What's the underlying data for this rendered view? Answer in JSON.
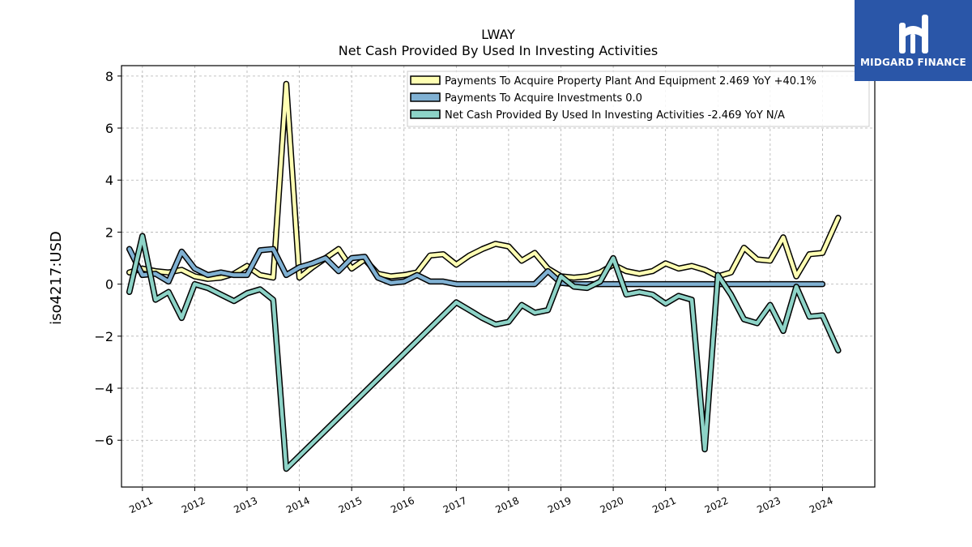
{
  "logo": {
    "text": "MIDGARD FINANCE",
    "icon": "midgard-mark-icon",
    "background": "#2a56a8"
  },
  "chart_data": {
    "type": "line",
    "title": "LWAY",
    "subtitle": "Net Cash Provided By Used In Investing Activities",
    "xlabel": "",
    "ylabel": "iso4217:USD",
    "xlim": [
      2010.6,
      2025.0
    ],
    "ylim": [
      -7.8,
      8.4
    ],
    "x_ticks": [
      2011,
      2012,
      2013,
      2014,
      2015,
      2016,
      2017,
      2018,
      2019,
      2020,
      2021,
      2022,
      2023,
      2024
    ],
    "x_tick_labels": [
      "2011",
      "2012",
      "2013",
      "2014",
      "2015",
      "2016",
      "2017",
      "2018",
      "2019",
      "2020",
      "2021",
      "2022",
      "2023",
      "2024"
    ],
    "y_ticks": [
      -6,
      -4,
      -2,
      0,
      2,
      4,
      6,
      8
    ],
    "y_tick_labels": [
      "−6",
      "−4",
      "−2",
      "0",
      "2",
      "4",
      "6",
      "8"
    ],
    "grid": true,
    "legend_position": "top-right",
    "series": [
      {
        "name": "Payments To Acquire Property Plant And Equipment  2.469 YoY +40.1%",
        "color": "#ffffb3",
        "points": [
          [
            2010.75,
            0.45
          ],
          [
            2011.0,
            0.6
          ],
          [
            2011.25,
            0.5
          ],
          [
            2011.5,
            0.45
          ],
          [
            2011.75,
            0.55
          ],
          [
            2012.0,
            0.3
          ],
          [
            2012.25,
            0.2
          ],
          [
            2012.5,
            0.25
          ],
          [
            2012.75,
            0.4
          ],
          [
            2013.0,
            0.7
          ],
          [
            2013.25,
            0.35
          ],
          [
            2013.5,
            0.25
          ],
          [
            2013.75,
            7.7
          ],
          [
            2014.0,
            0.25
          ],
          [
            2014.25,
            0.65
          ],
          [
            2014.5,
            1.0
          ],
          [
            2014.75,
            1.35
          ],
          [
            2015.0,
            0.6
          ],
          [
            2015.25,
            0.95
          ],
          [
            2015.5,
            0.4
          ],
          [
            2015.75,
            0.3
          ],
          [
            2016.0,
            0.35
          ],
          [
            2016.25,
            0.45
          ],
          [
            2016.5,
            1.1
          ],
          [
            2016.75,
            1.15
          ],
          [
            2017.0,
            0.75
          ],
          [
            2017.25,
            1.1
          ],
          [
            2017.5,
            1.35
          ],
          [
            2017.75,
            1.55
          ],
          [
            2018.0,
            1.45
          ],
          [
            2018.25,
            0.9
          ],
          [
            2018.5,
            1.2
          ],
          [
            2018.75,
            0.6
          ],
          [
            2019.0,
            0.3
          ],
          [
            2019.25,
            0.25
          ],
          [
            2019.5,
            0.3
          ],
          [
            2019.75,
            0.45
          ],
          [
            2020.0,
            0.75
          ],
          [
            2020.25,
            0.5
          ],
          [
            2020.5,
            0.4
          ],
          [
            2020.75,
            0.5
          ],
          [
            2021.0,
            0.8
          ],
          [
            2021.25,
            0.6
          ],
          [
            2021.5,
            0.7
          ],
          [
            2021.75,
            0.55
          ],
          [
            2022.0,
            0.3
          ],
          [
            2022.25,
            0.45
          ],
          [
            2022.5,
            1.4
          ],
          [
            2022.75,
            0.95
          ],
          [
            2023.0,
            0.9
          ],
          [
            2023.25,
            1.8
          ],
          [
            2023.5,
            0.3
          ],
          [
            2023.75,
            1.15
          ],
          [
            2024.0,
            1.2
          ],
          [
            2024.3,
            2.55
          ]
        ]
      },
      {
        "name": "Payments To Acquire Investments  0.0",
        "color": "#80b1d3",
        "points": [
          [
            2010.75,
            1.35
          ],
          [
            2011.0,
            0.35
          ],
          [
            2011.25,
            0.4
          ],
          [
            2011.5,
            0.1
          ],
          [
            2011.75,
            1.25
          ],
          [
            2012.0,
            0.6
          ],
          [
            2012.25,
            0.35
          ],
          [
            2012.5,
            0.45
          ],
          [
            2012.75,
            0.35
          ],
          [
            2013.0,
            0.35
          ],
          [
            2013.25,
            1.3
          ],
          [
            2013.5,
            1.35
          ],
          [
            2013.75,
            0.35
          ],
          [
            2014.0,
            0.65
          ],
          [
            2014.25,
            0.8
          ],
          [
            2014.5,
            1.0
          ],
          [
            2014.75,
            0.5
          ],
          [
            2015.0,
            1.0
          ],
          [
            2015.25,
            1.05
          ],
          [
            2015.5,
            0.25
          ],
          [
            2015.75,
            0.05
          ],
          [
            2016.0,
            0.1
          ],
          [
            2016.25,
            0.35
          ],
          [
            2016.5,
            0.1
          ],
          [
            2016.75,
            0.1
          ],
          [
            2017.0,
            0.0
          ],
          [
            2017.5,
            0.0
          ],
          [
            2018.0,
            0.0
          ],
          [
            2018.5,
            0.0
          ],
          [
            2018.75,
            0.5
          ],
          [
            2019.0,
            0.05
          ],
          [
            2019.25,
            0.0
          ],
          [
            2024.0,
            0.0
          ]
        ]
      },
      {
        "name": "Net Cash Provided By Used In Investing Activities  -2.469 YoY N/A",
        "color": "#8dd3c7",
        "points": [
          [
            2010.75,
            -0.3
          ],
          [
            2011.0,
            1.85
          ],
          [
            2011.25,
            -0.6
          ],
          [
            2011.5,
            -0.3
          ],
          [
            2011.75,
            -1.3
          ],
          [
            2012.0,
            0.0
          ],
          [
            2012.25,
            -0.15
          ],
          [
            2012.5,
            -0.4
          ],
          [
            2012.75,
            -0.65
          ],
          [
            2013.0,
            -0.35
          ],
          [
            2013.25,
            -0.2
          ],
          [
            2013.5,
            -0.6
          ],
          [
            2013.75,
            -7.1
          ],
          [
            2017.0,
            -0.7
          ],
          [
            2017.25,
            -1.0
          ],
          [
            2017.5,
            -1.3
          ],
          [
            2017.75,
            -1.55
          ],
          [
            2018.0,
            -1.45
          ],
          [
            2018.25,
            -0.8
          ],
          [
            2018.5,
            -1.1
          ],
          [
            2018.75,
            -1.0
          ],
          [
            2019.0,
            0.3
          ],
          [
            2019.25,
            -0.1
          ],
          [
            2019.5,
            -0.15
          ],
          [
            2019.75,
            0.1
          ],
          [
            2020.0,
            1.0
          ],
          [
            2020.25,
            -0.4
          ],
          [
            2020.5,
            -0.3
          ],
          [
            2020.75,
            -0.4
          ],
          [
            2021.0,
            -0.75
          ],
          [
            2021.25,
            -0.45
          ],
          [
            2021.5,
            -0.6
          ],
          [
            2021.75,
            -6.35
          ],
          [
            2022.0,
            0.35
          ],
          [
            2022.25,
            -0.4
          ],
          [
            2022.5,
            -1.35
          ],
          [
            2022.75,
            -1.5
          ],
          [
            2023.0,
            -0.8
          ],
          [
            2023.25,
            -1.8
          ],
          [
            2023.5,
            -0.1
          ],
          [
            2023.75,
            -1.25
          ],
          [
            2024.0,
            -1.2
          ],
          [
            2024.3,
            -2.55
          ]
        ]
      }
    ]
  }
}
